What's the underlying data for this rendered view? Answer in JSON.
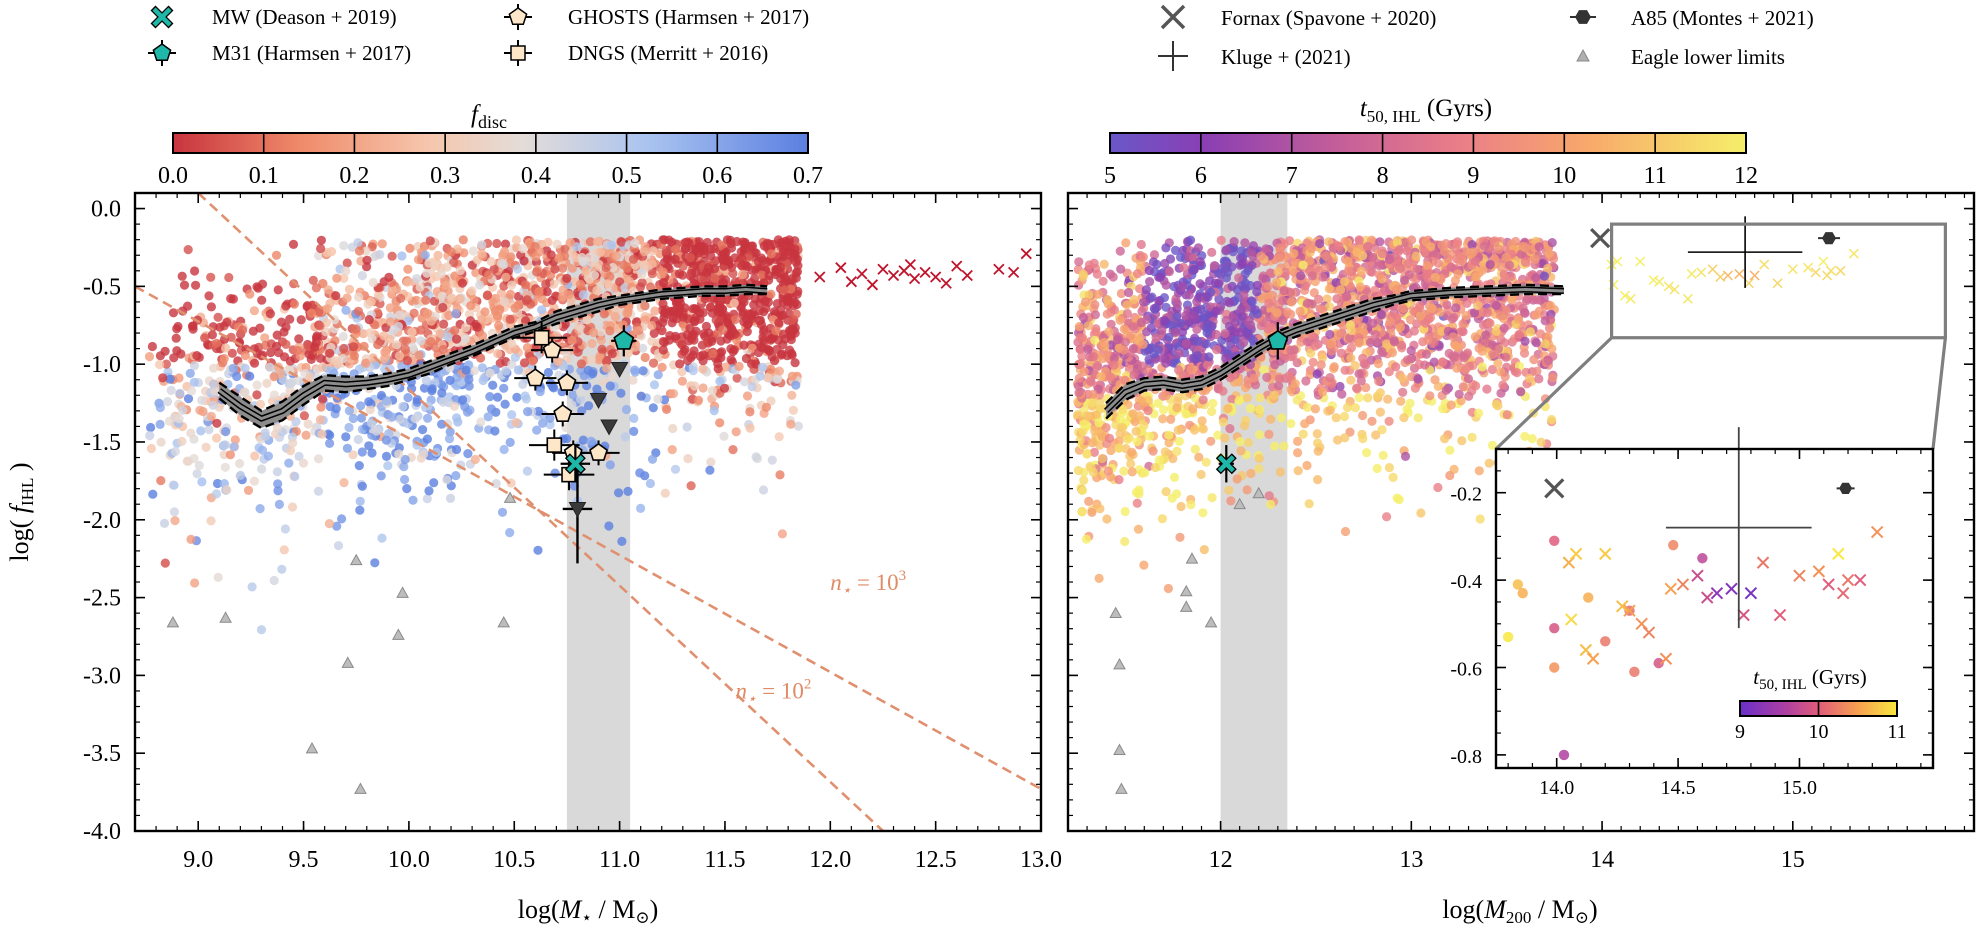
{
  "figure": {
    "legend_left": [
      {
        "label": "MW (Deason + 2019)",
        "marker": "x-star",
        "color": "#1fb8a8"
      },
      {
        "label": "M31 (Harmsen + 2017)",
        "marker": "pentagon",
        "color": "#1fb8a8"
      },
      {
        "label": "GHOSTS (Harmsen + 2017)",
        "marker": "pentagon",
        "color": "#fde7c8"
      },
      {
        "label": "DNGS (Merritt + 2016)",
        "marker": "square",
        "color": "#fde7c8"
      }
    ],
    "legend_right": [
      {
        "label": "Fornax (Spavone + 2020)",
        "marker": "x",
        "color": "#555555"
      },
      {
        "label": "Kluge + (2021)",
        "marker": "plus",
        "color": "#333333"
      },
      {
        "label": "A85 (Montes + 2021)",
        "marker": "hexagon",
        "color": "#333333"
      },
      {
        "label": "Eagle lower limits",
        "marker": "triangle",
        "color": "#b0b0b0"
      }
    ]
  },
  "chart_data": [
    {
      "type": "scatter",
      "title": "",
      "xlabel": "log(M⋆ / M⊙)",
      "ylabel": "log( fIHL )",
      "xlim": [
        8.7,
        13.0
      ],
      "ylim": [
        -4.0,
        0.1
      ],
      "xticks": [
        "9.0",
        "9.5",
        "10.0",
        "10.5",
        "11.0",
        "11.5",
        "12.0",
        "12.5",
        "13.0"
      ],
      "yticks": [
        "0.0",
        "-0.5",
        "-1.0",
        "-1.5",
        "-2.0",
        "-2.5",
        "-3.0",
        "-3.5",
        "-4.0"
      ],
      "colorbar": {
        "label": "f_disc",
        "label_main": "f",
        "label_sub": "disc",
        "ticks": [
          "0.0",
          "0.1",
          "0.2",
          "0.3",
          "0.4",
          "0.5",
          "0.6",
          "0.7"
        ],
        "range": [
          0.0,
          0.7
        ],
        "colormap": "coolwarm_r"
      },
      "shaded_band": [
        10.75,
        11.05
      ],
      "median_line": {
        "x": [
          9.1,
          9.2,
          9.3,
          9.4,
          9.5,
          9.6,
          9.7,
          9.8,
          9.9,
          10.0,
          10.1,
          10.2,
          10.3,
          10.4,
          10.5,
          10.6,
          10.7,
          10.8,
          10.9,
          11.0,
          11.1,
          11.2,
          11.3,
          11.4,
          11.5,
          11.6,
          11.7
        ],
        "y": [
          -1.17,
          -1.27,
          -1.35,
          -1.3,
          -1.2,
          -1.12,
          -1.13,
          -1.12,
          -1.1,
          -1.07,
          -1.02,
          -0.97,
          -0.92,
          -0.86,
          -0.8,
          -0.76,
          -0.7,
          -0.66,
          -0.62,
          -0.59,
          -0.57,
          -0.55,
          -0.54,
          -0.53,
          -0.53,
          -0.52,
          -0.53
        ],
        "band_y_low": [
          -1.22,
          -1.33,
          -1.41,
          -1.36,
          -1.26,
          -1.17,
          -1.18,
          -1.16,
          -1.14,
          -1.1,
          -1.06,
          -1.0,
          -0.95,
          -0.89,
          -0.83,
          -0.79,
          -0.74,
          -0.7,
          -0.66,
          -0.62,
          -0.6,
          -0.58,
          -0.57,
          -0.56,
          -0.56,
          -0.55,
          -0.55
        ],
        "band_y_high": [
          -1.12,
          -1.21,
          -1.3,
          -1.24,
          -1.14,
          -1.07,
          -1.08,
          -1.08,
          -1.06,
          -1.03,
          -0.98,
          -0.93,
          -0.88,
          -0.82,
          -0.76,
          -0.73,
          -0.66,
          -0.62,
          -0.58,
          -0.56,
          -0.54,
          -0.52,
          -0.51,
          -0.5,
          -0.5,
          -0.49,
          -0.5
        ]
      },
      "nstar_lines": [
        {
          "label_main": "n",
          "label_sub": "⋆",
          "label_eq": " = 10",
          "label_sup": "3",
          "x": [
            8.7,
            13.0
          ],
          "y": [
            -0.5,
            -3.73
          ],
          "label_x": 12.0,
          "label_y": -2.45
        },
        {
          "label_main": "n",
          "label_sub": "⋆",
          "label_eq": " = 10",
          "label_sup": "2",
          "x": [
            9.0,
            12.25
          ],
          "y": [
            0.1,
            -4.0
          ],
          "label_x": 11.55,
          "label_y": -3.15
        }
      ],
      "observations": {
        "MW": {
          "x": 10.79,
          "y": -1.64,
          "xerr": 0.07,
          "yerr": 0.12
        },
        "M31": {
          "x": 11.02,
          "y": -0.85,
          "xerr": 0.06,
          "yerr": 0.1
        },
        "GHOSTS": [
          {
            "x": 10.6,
            "y": -1.09
          },
          {
            "x": 10.68,
            "y": -0.91
          },
          {
            "x": 10.75,
            "y": -1.12
          },
          {
            "x": 10.73,
            "y": -1.32
          },
          {
            "x": 10.9,
            "y": -1.57
          },
          {
            "x": 10.78,
            "y": -1.57
          }
        ],
        "DNGS": [
          {
            "x": 10.63,
            "y": -0.83
          },
          {
            "x": 10.69,
            "y": -1.52
          },
          {
            "x": 10.76,
            "y": -1.71
          }
        ],
        "dark_triangles": [
          {
            "x": 10.8,
            "y": -1.93,
            "yerr": 0.35
          },
          {
            "x": 10.9,
            "y": -1.23
          },
          {
            "x": 11.0,
            "y": -1.03
          },
          {
            "x": 10.95,
            "y": -1.4
          }
        ],
        "eagle_limits": [
          {
            "x": 8.88,
            "y": -2.66
          },
          {
            "x": 9.13,
            "y": -2.63
          },
          {
            "x": 9.75,
            "y": -2.26
          },
          {
            "x": 9.97,
            "y": -2.47
          },
          {
            "x": 9.95,
            "y": -2.74
          },
          {
            "x": 9.71,
            "y": -2.92
          },
          {
            "x": 10.45,
            "y": -2.66
          },
          {
            "x": 9.54,
            "y": -3.47
          },
          {
            "x": 9.77,
            "y": -3.73
          },
          {
            "x": 10.48,
            "y": -1.86
          }
        ],
        "crosses": [
          {
            "x": 11.95,
            "y": -0.44
          },
          {
            "x": 12.05,
            "y": -0.38
          },
          {
            "x": 12.15,
            "y": -0.42
          },
          {
            "x": 12.25,
            "y": -0.39
          },
          {
            "x": 12.3,
            "y": -0.43
          },
          {
            "x": 12.35,
            "y": -0.4
          },
          {
            "x": 12.4,
            "y": -0.45
          },
          {
            "x": 12.45,
            "y": -0.41
          },
          {
            "x": 12.5,
            "y": -0.44
          },
          {
            "x": 12.6,
            "y": -0.37
          },
          {
            "x": 12.65,
            "y": -0.43
          },
          {
            "x": 12.8,
            "y": -0.39
          },
          {
            "x": 12.87,
            "y": -0.41
          },
          {
            "x": 12.93,
            "y": -0.29
          },
          {
            "x": 12.2,
            "y": -0.49
          },
          {
            "x": 12.55,
            "y": -0.48
          },
          {
            "x": 12.38,
            "y": -0.36
          },
          {
            "x": 12.1,
            "y": -0.47
          }
        ]
      }
    },
    {
      "type": "scatter",
      "title": "",
      "xlabel": "log(M200 / M⊙)",
      "ylabel": "",
      "xlim": [
        11.2,
        15.95
      ],
      "ylim": [
        -4.0,
        0.1
      ],
      "xticks": [
        "12",
        "13",
        "14",
        "15"
      ],
      "colorbar": {
        "label": "t50,IHL (Gyrs)",
        "label_main": "t",
        "label_sub": "50, IHL",
        "label_tail": " (Gyrs)",
        "ticks": [
          "5",
          "6",
          "7",
          "8",
          "9",
          "10",
          "11",
          "12"
        ],
        "range": [
          5,
          12
        ],
        "colormap": "plasma"
      },
      "shaded_band": [
        12.0,
        12.35
      ],
      "zoom_box": {
        "x": [
          14.05,
          15.8
        ],
        "y": [
          -0.83,
          -0.1
        ]
      },
      "median_line": {
        "x": [
          11.4,
          11.5,
          11.6,
          11.7,
          11.8,
          11.9,
          12.0,
          12.1,
          12.2,
          12.3,
          12.4,
          12.5,
          12.6,
          12.7,
          12.8,
          12.9,
          13.0,
          13.2,
          13.4,
          13.6,
          13.8
        ],
        "y": [
          -1.3,
          -1.18,
          -1.13,
          -1.12,
          -1.14,
          -1.12,
          -1.06,
          -0.98,
          -0.9,
          -0.83,
          -0.78,
          -0.74,
          -0.7,
          -0.66,
          -0.62,
          -0.59,
          -0.56,
          -0.54,
          -0.53,
          -0.52,
          -0.53
        ],
        "band_y_low": [
          -1.35,
          -1.23,
          -1.17,
          -1.16,
          -1.18,
          -1.16,
          -1.1,
          -1.02,
          -0.94,
          -0.87,
          -0.82,
          -0.78,
          -0.74,
          -0.7,
          -0.66,
          -0.62,
          -0.59,
          -0.57,
          -0.56,
          -0.55,
          -0.55
        ],
        "band_y_high": [
          -1.25,
          -1.13,
          -1.09,
          -1.08,
          -1.1,
          -1.08,
          -1.02,
          -0.94,
          -0.86,
          -0.79,
          -0.74,
          -0.7,
          -0.66,
          -0.62,
          -0.58,
          -0.56,
          -0.53,
          -0.51,
          -0.5,
          -0.49,
          -0.5
        ]
      },
      "observations": {
        "MW": {
          "x": 12.03,
          "y": -1.64,
          "xerr": 0.04,
          "yerr": 0.12
        },
        "M31": {
          "x": 12.3,
          "y": -0.85,
          "xerr": 0.04,
          "yerr": 0.12
        },
        "Fornax": {
          "x": 13.99,
          "y": -0.19
        },
        "A85": {
          "x": 15.19,
          "y": -0.19
        },
        "Kluge": {
          "x": 14.75,
          "y": -0.28,
          "xerr": 0.3,
          "yerr": 0.23
        },
        "eagle_limits": [
          {
            "x": 11.45,
            "y": -2.6
          },
          {
            "x": 11.47,
            "y": -2.93
          },
          {
            "x": 11.47,
            "y": -3.48
          },
          {
            "x": 11.48,
            "y": -3.73
          },
          {
            "x": 11.85,
            "y": -2.25
          },
          {
            "x": 11.82,
            "y": -2.46
          },
          {
            "x": 11.82,
            "y": -2.56
          },
          {
            "x": 11.95,
            "y": -2.66
          },
          {
            "x": 12.1,
            "y": -1.9
          },
          {
            "x": 12.2,
            "y": -1.83
          }
        ]
      }
    },
    {
      "type": "scatter",
      "title": "inset",
      "xlim": [
        13.75,
        15.55
      ],
      "ylim": [
        -0.83,
        -0.1
      ],
      "xticks": [
        "14.0",
        "14.5",
        "15.0"
      ],
      "yticks": [
        "-0.2",
        "-0.4",
        "-0.6",
        "-0.8"
      ],
      "colorbar": {
        "label": "t50,IHL (Gyrs)",
        "label_main": "t",
        "label_sub": "50, IHL",
        "label_tail": " (Gyrs)",
        "ticks": [
          "9",
          "10",
          "11"
        ],
        "range": [
          9,
          11
        ],
        "colormap": "plasma"
      },
      "points_circles": [
        {
          "x": 13.84,
          "y": -0.41,
          "c": 10.7
        },
        {
          "x": 13.86,
          "y": -0.43,
          "c": 10.6
        },
        {
          "x": 13.8,
          "y": -0.53,
          "c": 11.0
        },
        {
          "x": 13.99,
          "y": -0.31,
          "c": 10.0
        },
        {
          "x": 13.99,
          "y": -0.51,
          "c": 9.9
        },
        {
          "x": 13.99,
          "y": -0.6,
          "c": 10.4
        },
        {
          "x": 14.03,
          "y": -0.8,
          "c": 9.6
        },
        {
          "x": 14.2,
          "y": -0.54,
          "c": 10.2
        },
        {
          "x": 14.3,
          "y": -0.47,
          "c": 10.1
        },
        {
          "x": 14.32,
          "y": -0.61,
          "c": 10.2
        },
        {
          "x": 14.42,
          "y": -0.59,
          "c": 9.9
        },
        {
          "x": 14.48,
          "y": -0.32,
          "c": 10.3
        },
        {
          "x": 14.6,
          "y": -0.35,
          "c": 9.7
        },
        {
          "x": 14.13,
          "y": -0.44,
          "c": 10.6
        }
      ],
      "points_crosses": [
        {
          "x": 14.05,
          "y": -0.36,
          "c": 10.6
        },
        {
          "x": 14.06,
          "y": -0.49,
          "c": 10.9
        },
        {
          "x": 14.08,
          "y": -0.34,
          "c": 10.8
        },
        {
          "x": 14.12,
          "y": -0.56,
          "c": 10.7
        },
        {
          "x": 14.15,
          "y": -0.58,
          "c": 10.5
        },
        {
          "x": 14.2,
          "y": -0.34,
          "c": 10.8
        },
        {
          "x": 14.27,
          "y": -0.46,
          "c": 10.7
        },
        {
          "x": 14.3,
          "y": -0.47,
          "c": 10.5
        },
        {
          "x": 14.35,
          "y": -0.5,
          "c": 10.4
        },
        {
          "x": 14.38,
          "y": -0.52,
          "c": 10.3
        },
        {
          "x": 14.45,
          "y": -0.58,
          "c": 10.4
        },
        {
          "x": 14.47,
          "y": -0.42,
          "c": 10.5
        },
        {
          "x": 14.52,
          "y": -0.41,
          "c": 10.3
        },
        {
          "x": 14.58,
          "y": -0.39,
          "c": 9.8
        },
        {
          "x": 14.62,
          "y": -0.44,
          "c": 9.8
        },
        {
          "x": 14.66,
          "y": -0.43,
          "c": 9.3
        },
        {
          "x": 14.72,
          "y": -0.42,
          "c": 9.2
        },
        {
          "x": 14.77,
          "y": -0.48,
          "c": 9.9
        },
        {
          "x": 14.8,
          "y": -0.43,
          "c": 9.1
        },
        {
          "x": 14.85,
          "y": -0.36,
          "c": 10.2
        },
        {
          "x": 14.92,
          "y": -0.48,
          "c": 10.0
        },
        {
          "x": 15.0,
          "y": -0.39,
          "c": 10.3
        },
        {
          "x": 15.08,
          "y": -0.38,
          "c": 10.4
        },
        {
          "x": 15.12,
          "y": -0.41,
          "c": 10.0
        },
        {
          "x": 15.16,
          "y": -0.34,
          "c": 11.0
        },
        {
          "x": 15.18,
          "y": -0.43,
          "c": 10.1
        },
        {
          "x": 15.2,
          "y": -0.4,
          "c": 10.2
        },
        {
          "x": 15.25,
          "y": -0.4,
          "c": 10.0
        },
        {
          "x": 15.32,
          "y": -0.29,
          "c": 10.4
        }
      ]
    }
  ]
}
